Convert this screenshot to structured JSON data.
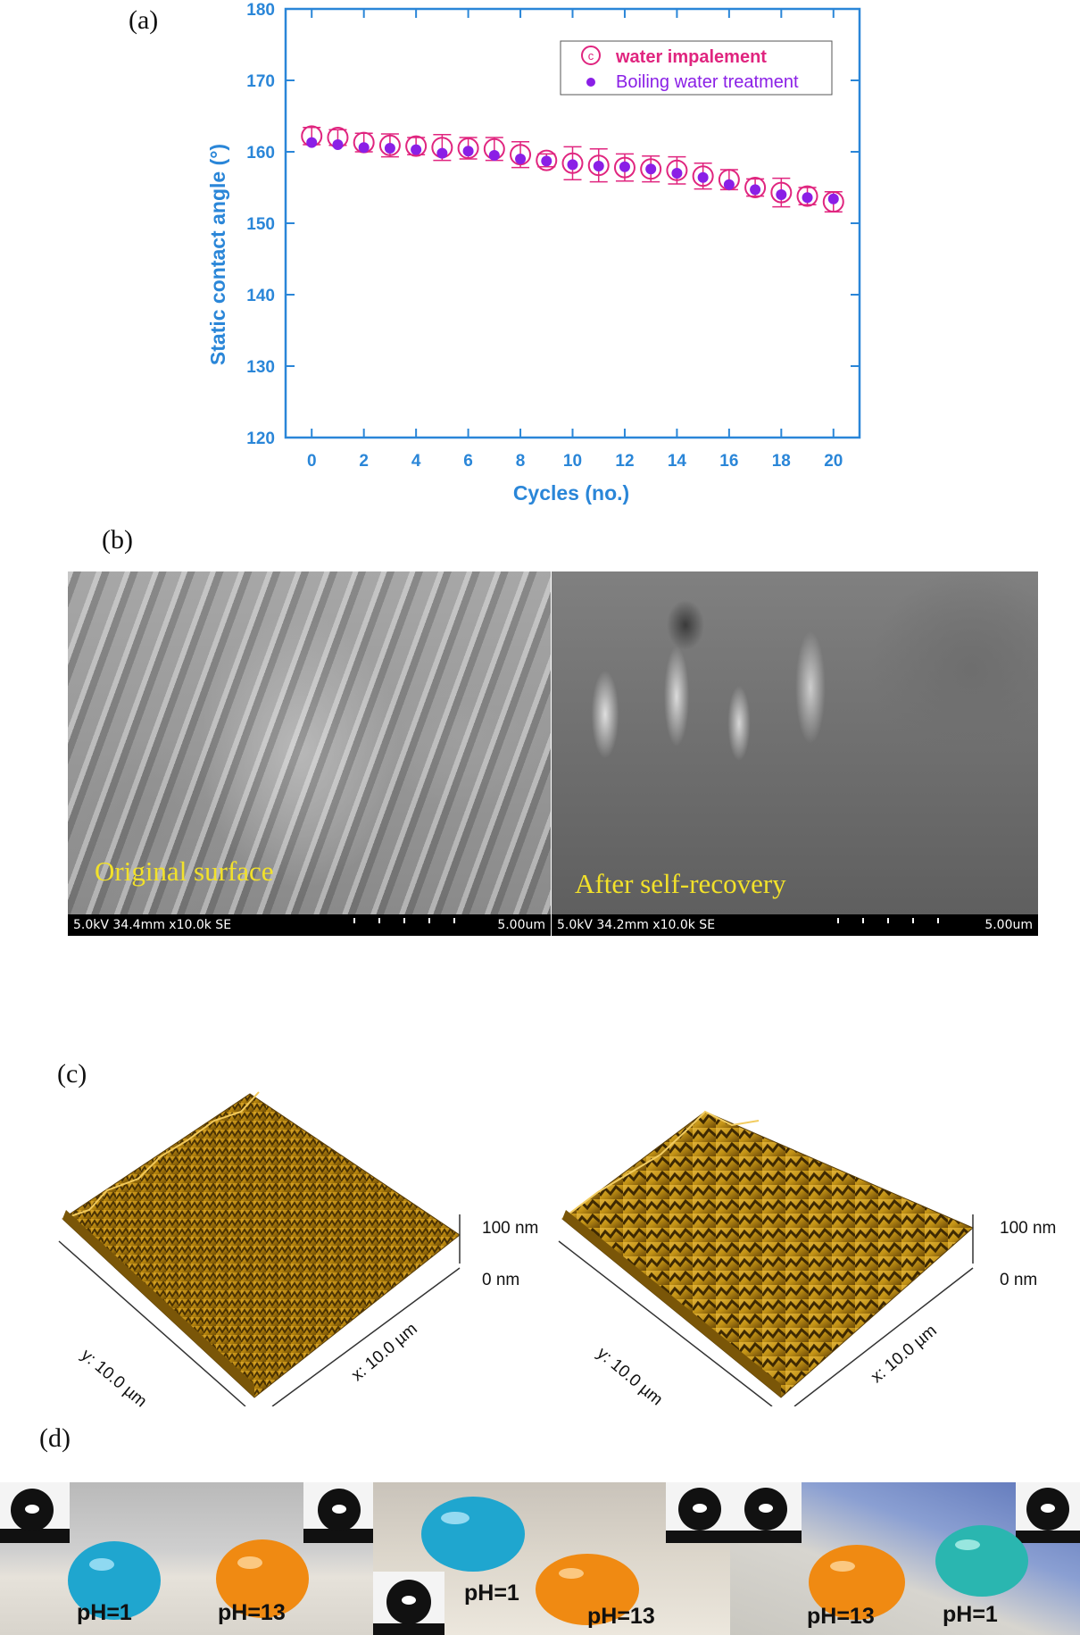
{
  "panels": {
    "a": "(a)",
    "b": "(b)",
    "c": "(c)",
    "d": "(d)"
  },
  "chart_data": {
    "type": "scatter",
    "ylabel": "Static contact angle (°)",
    "xlabel": "Cycles (no.)",
    "xlim": [
      -1,
      21
    ],
    "ylim": [
      120,
      180
    ],
    "xticks": [
      0,
      2,
      4,
      6,
      8,
      10,
      12,
      14,
      16,
      18,
      20
    ],
    "yticks": [
      120,
      130,
      140,
      150,
      160,
      170,
      180
    ],
    "legend_position": "top-right",
    "series": [
      {
        "name": "water impalement",
        "marker": "open-circle-with-c",
        "color": "#e0257f",
        "x": [
          0,
          1,
          2,
          3,
          4,
          5,
          6,
          7,
          8,
          9,
          10,
          11,
          12,
          13,
          14,
          15,
          16,
          17,
          18,
          19,
          20
        ],
        "y": [
          162.2,
          162.0,
          161.3,
          160.9,
          160.8,
          160.6,
          160.5,
          160.4,
          159.6,
          158.8,
          158.4,
          158.1,
          157.8,
          157.6,
          157.4,
          156.6,
          156.1,
          155.0,
          154.3,
          153.8,
          153.0
        ],
        "err": [
          1.2,
          1.1,
          1.3,
          1.6,
          1.2,
          1.8,
          1.5,
          1.6,
          1.8,
          0.9,
          2.3,
          2.3,
          1.9,
          1.8,
          1.9,
          1.8,
          1.4,
          1.2,
          2.0,
          1.2,
          1.4
        ]
      },
      {
        "name": "Boiling water treatment",
        "marker": "filled-circle",
        "color": "#8a1fe6",
        "x": [
          0,
          1,
          2,
          3,
          4,
          5,
          6,
          7,
          8,
          9,
          10,
          11,
          12,
          13,
          14,
          15,
          16,
          17,
          18,
          19,
          20
        ],
        "y": [
          161.3,
          161.0,
          160.6,
          160.5,
          160.3,
          159.8,
          160.1,
          159.5,
          159.0,
          158.7,
          158.2,
          158.0,
          157.9,
          157.6,
          157.0,
          156.4,
          155.4,
          154.7,
          154.0,
          153.6,
          153.4
        ]
      }
    ],
    "colors": {
      "axis": "#2a86d8",
      "frame": "#2a86d8"
    }
  },
  "sem": {
    "left_info": "5.0kV 34.4mm x10.0k SE",
    "left_scale": "5.00um",
    "left_caption": "Original surface",
    "right_info": "5.0kV 34.2mm x10.0k SE",
    "right_scale": "5.00um",
    "right_caption": "After self-recovery"
  },
  "afm": {
    "left": {
      "z_top": "100 nm",
      "z_bottom": "0 nm",
      "y_axis": "y: 10.0 µm",
      "x_axis": "x: 10.0 µm"
    },
    "right": {
      "z_top": "100 nm",
      "z_bottom": "0 nm",
      "y_axis": "y: 10.0 µm",
      "x_axis": "x: 10.0 µm"
    },
    "colors": {
      "gold": "#c9951a",
      "dark": "#4a3203"
    }
  },
  "drops": {
    "panel1": {
      "left": "pH=1",
      "right": "pH=13"
    },
    "panel2": {
      "left": "pH=1",
      "right": "pH=13"
    },
    "panel3": {
      "left": "pH=13",
      "right": "pH=1"
    },
    "colors": {
      "blue": "#1fa6cf",
      "orange": "#f08a12",
      "teal": "#2ab6b0"
    }
  }
}
